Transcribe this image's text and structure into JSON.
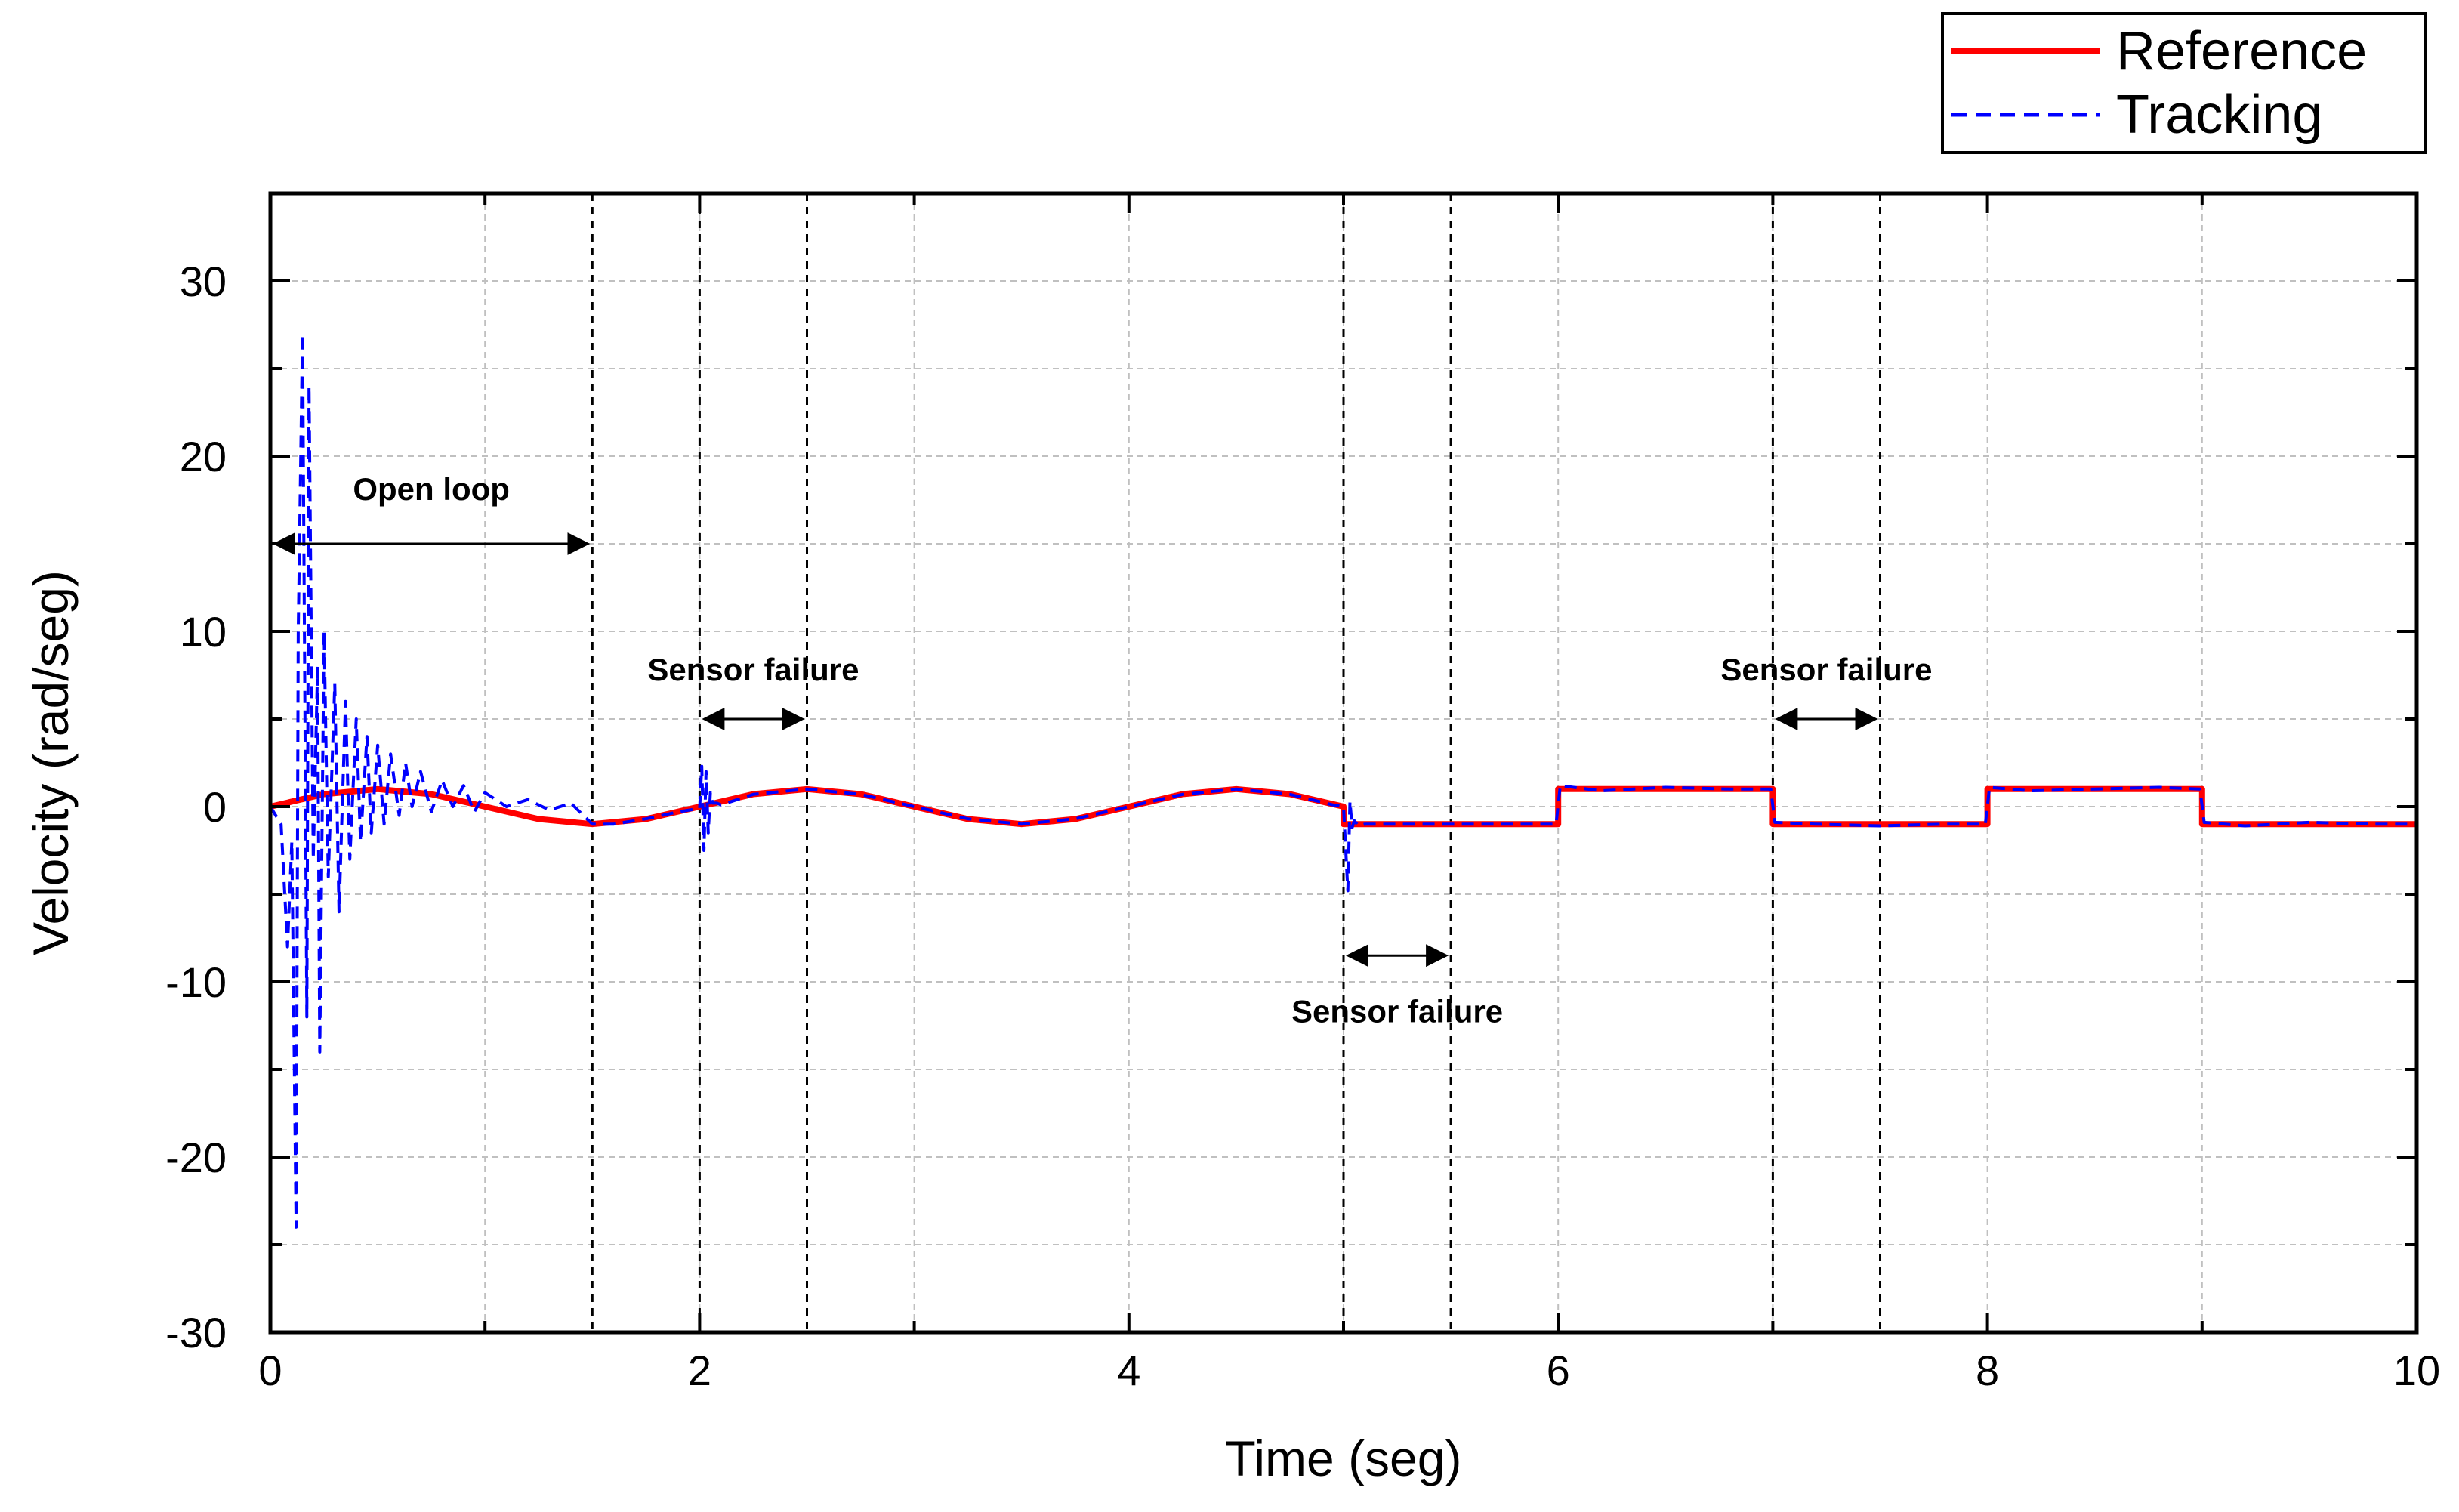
{
  "chart_data": {
    "type": "line",
    "title": "",
    "xlabel": "Time (seg)",
    "ylabel": "Velocity (rad/seg)",
    "xlim": [
      0,
      10
    ],
    "ylim": [
      -30,
      35
    ],
    "xticks": [
      0,
      2,
      4,
      6,
      8,
      10
    ],
    "xtick_labels": [
      "0",
      "2",
      "4",
      "6",
      "8",
      "10"
    ],
    "yticks": [
      -30,
      -20,
      -10,
      0,
      10,
      20,
      30
    ],
    "ytick_labels": [
      "-30",
      "-20",
      "-10",
      "0",
      "10",
      "20",
      "30"
    ],
    "grid": true,
    "legend_position": "top-right, outside plot",
    "series": [
      {
        "name": "Reference",
        "style": "solid",
        "color": "#ff0000",
        "x": [
          0,
          0.25,
          0.5,
          0.75,
          1.0,
          1.25,
          1.5,
          1.75,
          2.0,
          2.25,
          2.5,
          2.75,
          3.0,
          3.25,
          3.5,
          3.75,
          4.0,
          4.25,
          4.5,
          4.75,
          5.0,
          5.0,
          6.0,
          6.0,
          7.0,
          7.0,
          8.0,
          8.0,
          9.0,
          9.0,
          10.0
        ],
        "values": [
          0,
          0.71,
          1.0,
          0.71,
          0,
          -0.71,
          -1.0,
          -0.71,
          0,
          0.71,
          1.0,
          0.71,
          0,
          -0.71,
          -1.0,
          -0.71,
          0,
          0.71,
          1.0,
          0.71,
          0,
          -1,
          -1,
          1,
          1,
          -1,
          -1,
          1,
          1,
          -1,
          -1
        ]
      },
      {
        "name": "Tracking",
        "style": "dashed",
        "color": "#0000ff",
        "x": [
          0,
          0.05,
          0.08,
          0.1,
          0.12,
          0.13,
          0.15,
          0.17,
          0.18,
          0.2,
          0.22,
          0.23,
          0.25,
          0.27,
          0.3,
          0.32,
          0.35,
          0.37,
          0.4,
          0.42,
          0.45,
          0.47,
          0.5,
          0.53,
          0.56,
          0.6,
          0.63,
          0.66,
          0.7,
          0.75,
          0.8,
          0.85,
          0.9,
          0.95,
          1.0,
          1.1,
          1.2,
          1.3,
          1.4,
          1.5,
          1.6,
          1.75,
          1.9,
          2.0,
          2.01,
          2.02,
          2.03,
          2.04,
          2.05,
          2.06,
          2.08,
          2.1,
          2.25,
          2.5,
          2.75,
          3.0,
          3.25,
          3.5,
          3.75,
          4.0,
          4.25,
          4.5,
          4.75,
          4.95,
          5.0,
          5.02,
          5.03,
          5.04,
          5.05,
          5.07,
          5.1,
          5.3,
          5.5,
          5.8,
          5.99,
          6.01,
          6.2,
          6.5,
          6.8,
          6.99,
          7.01,
          7.2,
          7.5,
          7.8,
          7.99,
          8.01,
          8.2,
          8.5,
          8.8,
          8.99,
          9.01,
          9.2,
          9.5,
          9.8,
          10.0
        ],
        "values": [
          0,
          -1,
          -8,
          -2,
          -24,
          10,
          27,
          -12,
          24,
          -3,
          8,
          -14,
          10,
          -4,
          7,
          -6,
          6,
          -3,
          5,
          -2,
          4,
          -1.5,
          3.5,
          -1,
          3,
          -0.5,
          2.5,
          0,
          2,
          -0.3,
          1.5,
          0,
          1.2,
          -0.3,
          0.8,
          0,
          0.4,
          -0.2,
          0.2,
          -1.0,
          -1.0,
          -0.7,
          -0.3,
          -0.1,
          2.3,
          -2.5,
          2.0,
          -1.5,
          0.8,
          0.2,
          0.2,
          0.1,
          0.7,
          1.0,
          0.7,
          0,
          -0.7,
          -1.0,
          -0.7,
          0,
          0.7,
          1.0,
          0.7,
          0.1,
          0,
          -4.8,
          0.3,
          -1.2,
          -0.8,
          -1.1,
          -1.0,
          -1.0,
          -1.0,
          -1.0,
          -1.0,
          1.2,
          0.9,
          1.1,
          1.0,
          1.0,
          -0.9,
          -1.0,
          -1.1,
          -1.0,
          -1.0,
          1.1,
          0.9,
          1.0,
          1.1,
          1.0,
          -0.9,
          -1.1,
          -0.9,
          -1.0,
          -1.0
        ]
      }
    ],
    "event_lines_x": [
      1.5,
      2.0,
      2.5,
      5.0,
      5.5,
      7.0,
      7.5
    ],
    "annotations": [
      {
        "text": "Open loop",
        "x": 0.75,
        "y": 17.5,
        "arrow_from": 0,
        "arrow_to": 1.5,
        "arrow_y": 15
      },
      {
        "text": "Sensor failure",
        "x": 2.25,
        "y": 7.2,
        "arrow_from": 2.0,
        "arrow_to": 2.5,
        "arrow_y": 5
      },
      {
        "text": "Sensor failure",
        "x": 5.25,
        "y": -12.3,
        "arrow_from": 5.0,
        "arrow_to": 5.5,
        "arrow_y": -8.5
      },
      {
        "text": "Sensor failure",
        "x": 7.25,
        "y": 7.2,
        "arrow_from": 7.0,
        "arrow_to": 7.5,
        "arrow_y": 5
      }
    ]
  }
}
